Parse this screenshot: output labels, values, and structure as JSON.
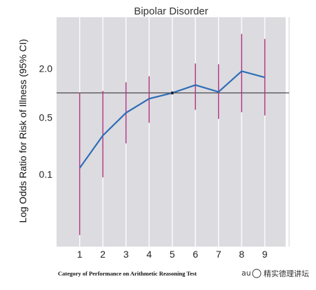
{
  "chart_data": {
    "type": "line",
    "title": "Bipolar Disorder",
    "ylabel": "Log Odds Ratio for Risk of Illness (95% CI)",
    "xlabel": "Category of Performance on Arithmetic Reasoning Test",
    "y_scale": "log",
    "y_tick_labels": [
      "0.1",
      "0.5",
      "2.0"
    ],
    "y_ticks": [
      0.1,
      0.5,
      2.0
    ],
    "ylim": [
      0.013,
      8.5
    ],
    "reference_line": 1.0,
    "x": [
      1,
      2,
      3,
      4,
      5,
      6,
      7,
      8,
      9
    ],
    "x_tick_labels": [
      "1",
      "2",
      "3",
      "4",
      "5",
      "6",
      "7",
      "8",
      "9"
    ],
    "xlim": [
      0,
      9.9
    ],
    "series": [
      {
        "values": [
          0.12,
          0.3,
          0.57,
          0.85,
          1.0,
          1.25,
          1.03,
          1.85,
          1.55
        ],
        "ci_lower": [
          0.018,
          0.092,
          0.24,
          0.43,
          1.0,
          0.62,
          0.48,
          0.58,
          0.53
        ],
        "ci_upper": [
          1.0,
          1.06,
          1.35,
          1.6,
          1.0,
          2.3,
          2.25,
          5.3,
          4.6
        ],
        "color": "#2d6db6",
        "ci_color": "#b0307e"
      }
    ],
    "grid": "vertical",
    "background_color": "#dcdbe0"
  },
  "watermark": {
    "text": "au",
    "text2": "精实德理讲坛"
  }
}
